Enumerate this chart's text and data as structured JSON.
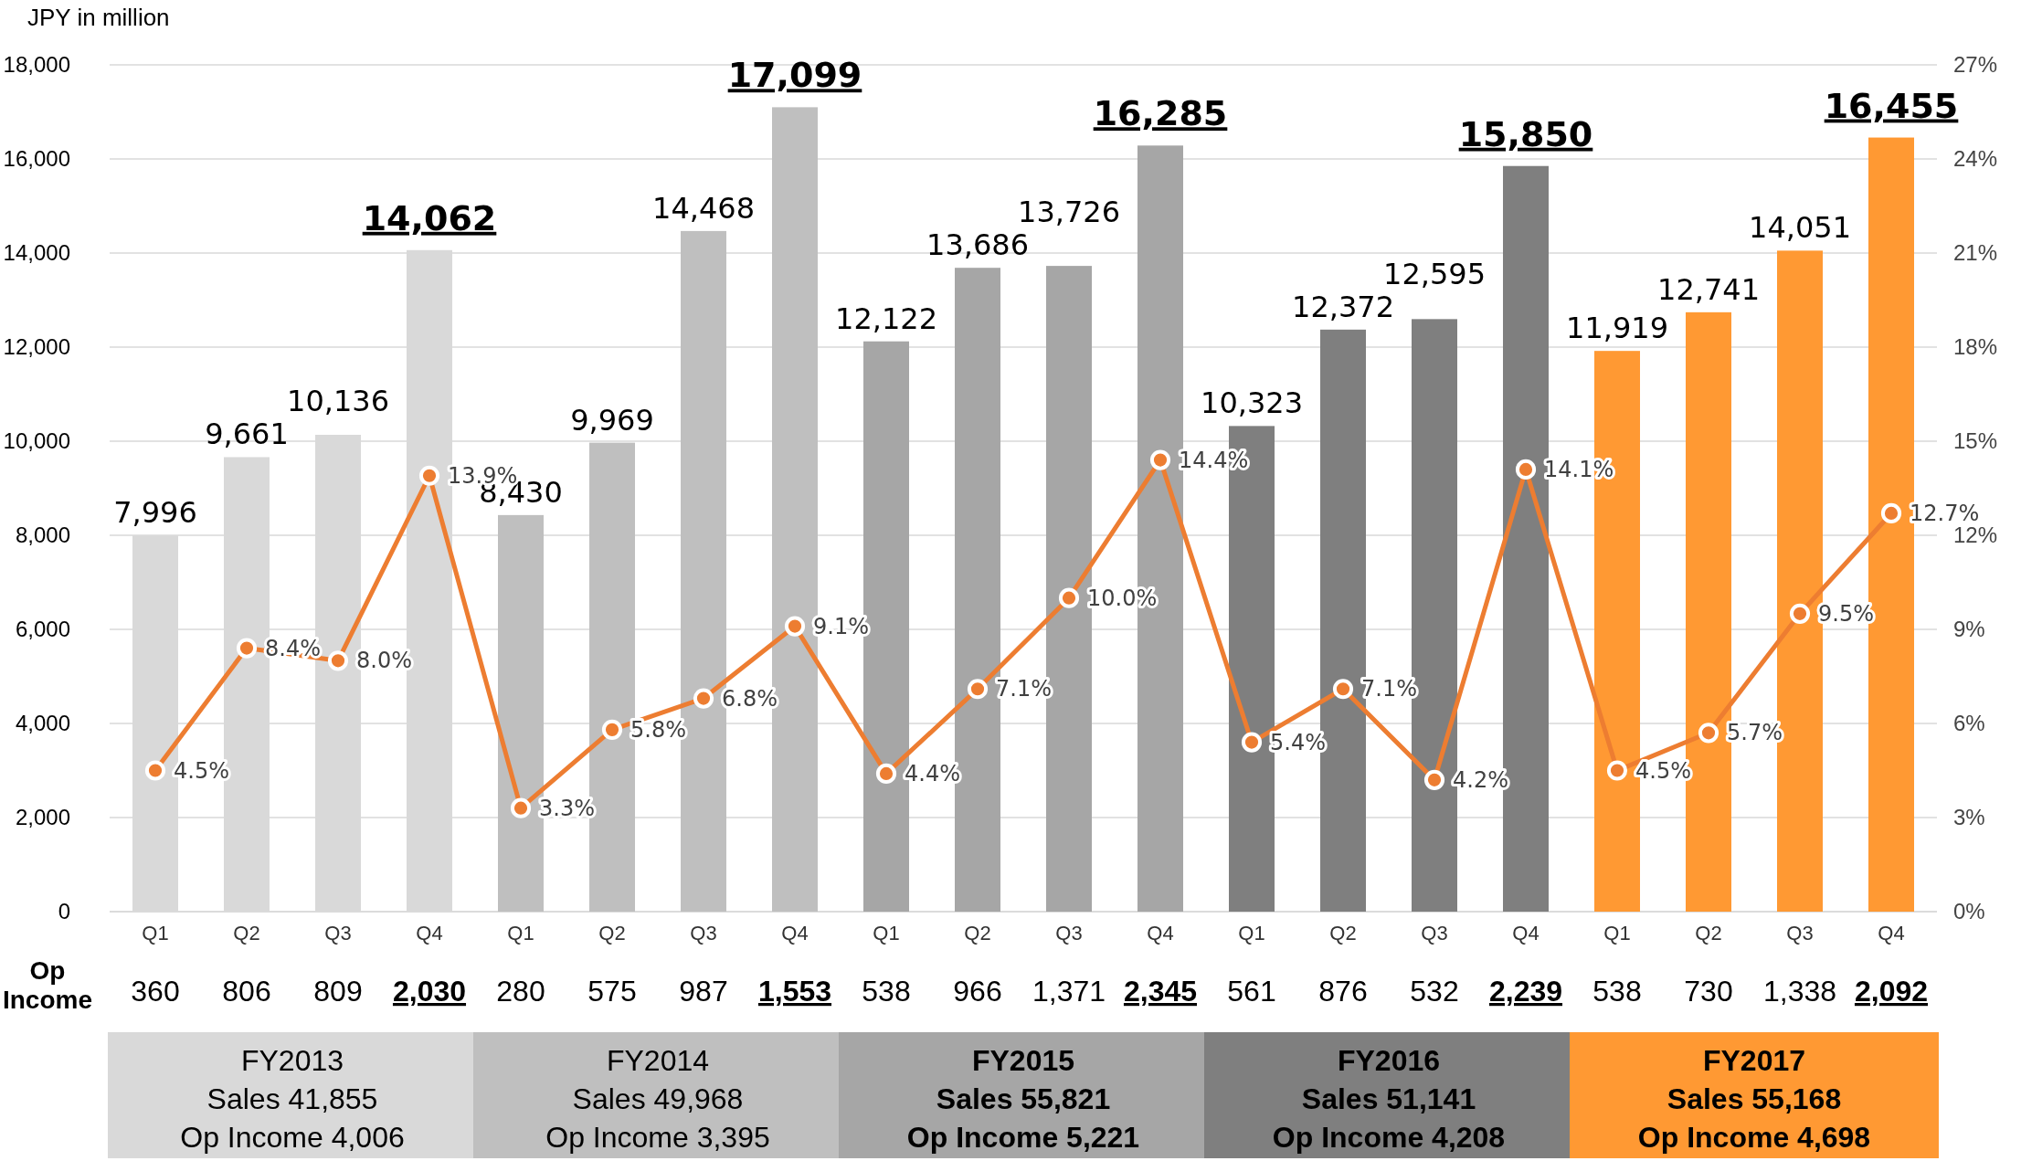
{
  "chart_data": {
    "type": "bar",
    "ylabel": "JPY in million",
    "categories": [
      "Q1",
      "Q2",
      "Q3",
      "Q4",
      "Q1",
      "Q2",
      "Q3",
      "Q4",
      "Q1",
      "Q2",
      "Q3",
      "Q4",
      "Q1",
      "Q2",
      "Q3",
      "Q4",
      "Q1",
      "Q2",
      "Q3",
      "Q4"
    ],
    "series": [
      {
        "values": [
          7996,
          9661,
          10136,
          14062,
          8430,
          9969,
          14468,
          17099,
          12122,
          13686,
          13726,
          16285,
          10323,
          12372,
          12595,
          15850,
          11919,
          12741,
          14051,
          16455
        ],
        "colors": [
          "#d9d9d9",
          "#d9d9d9",
          "#d9d9d9",
          "#d9d9d9",
          "#bfbfbf",
          "#bfbfbf",
          "#bfbfbf",
          "#bfbfbf",
          "#a6a6a6",
          "#a6a6a6",
          "#a6a6a6",
          "#a6a6a6",
          "#7f7f7f",
          "#7f7f7f",
          "#7f7f7f",
          "#7f7f7f",
          "#ff9933",
          "#ff9933",
          "#ff9933",
          "#ff9933"
        ],
        "value_labels": [
          "7,996",
          "9,661",
          "10,136",
          "14,062",
          "8,430",
          "9,969",
          "14,468",
          "17,099",
          "12,122",
          "13,686",
          "13,726",
          "16,285",
          "10,323",
          "12,372",
          "12,595",
          "15,850",
          "11,919",
          "12,741",
          "14,051",
          "16,455"
        ]
      },
      {
        "type": "line",
        "axis": "y2",
        "color": "#ed7d31",
        "values": [
          4.5,
          8.4,
          8.0,
          13.9,
          3.3,
          5.8,
          6.8,
          9.1,
          4.4,
          7.1,
          10.0,
          14.4,
          5.4,
          7.1,
          4.2,
          14.1,
          4.5,
          5.7,
          9.5,
          12.7
        ],
        "value_labels": [
          "4.5%",
          "8.4%",
          "8.0%",
          "13.9%",
          "3.3%",
          "5.8%",
          "6.8%",
          "9.1%",
          "4.4%",
          "7.1%",
          "10.0%",
          "14.4%",
          "5.4%",
          "7.1%",
          "4.2%",
          "14.1%",
          "4.5%",
          "5.7%",
          "9.5%",
          "12.7%"
        ]
      }
    ],
    "ylim": [
      0,
      18000
    ],
    "yticks": [
      {
        "value": 0,
        "label": "0"
      },
      {
        "value": 2000,
        "label": "2,000"
      },
      {
        "value": 4000,
        "label": "4,000"
      },
      {
        "value": 6000,
        "label": "6,000"
      },
      {
        "value": 8000,
        "label": "8,000"
      },
      {
        "value": 10000,
        "label": "10,000"
      },
      {
        "value": 12000,
        "label": "12,000"
      },
      {
        "value": 14000,
        "label": "14,000"
      },
      {
        "value": 16000,
        "label": "16,000"
      },
      {
        "value": 18000,
        "label": "18,000"
      }
    ],
    "y2lim": [
      0,
      27
    ],
    "y2ticks": [
      {
        "value": 0,
        "label": "0%"
      },
      {
        "value": 3,
        "label": "3%"
      },
      {
        "value": 6,
        "label": "6%"
      },
      {
        "value": 9,
        "label": "9%"
      },
      {
        "value": 12,
        "label": "12%"
      },
      {
        "value": 15,
        "label": "15%"
      },
      {
        "value": 18,
        "label": "18%"
      },
      {
        "value": 21,
        "label": "21%"
      },
      {
        "value": 24,
        "label": "24%"
      },
      {
        "value": 27,
        "label": "27%"
      }
    ],
    "grid": "y",
    "marker": "circle",
    "annotations": [
      "Op Income",
      "360",
      "806",
      "809",
      "2,030",
      "280",
      "575",
      "987",
      "1,553",
      "538",
      "966",
      "1,371",
      "2,345",
      "561",
      "876",
      "532",
      "2,239",
      "538",
      "730",
      "1,338",
      "2,092",
      "FY2013\nSales 41,855\nOp Income 4,006",
      "FY2014\nSales 49,968\nOp Income 3,395",
      "FY2015\nSales 55,821\nOp Income 5,221",
      "FY2016\nSales 51,141\nOp Income 4,208",
      "FY2017\nSales 55,168\nOp Income 4,698"
    ]
  }
}
